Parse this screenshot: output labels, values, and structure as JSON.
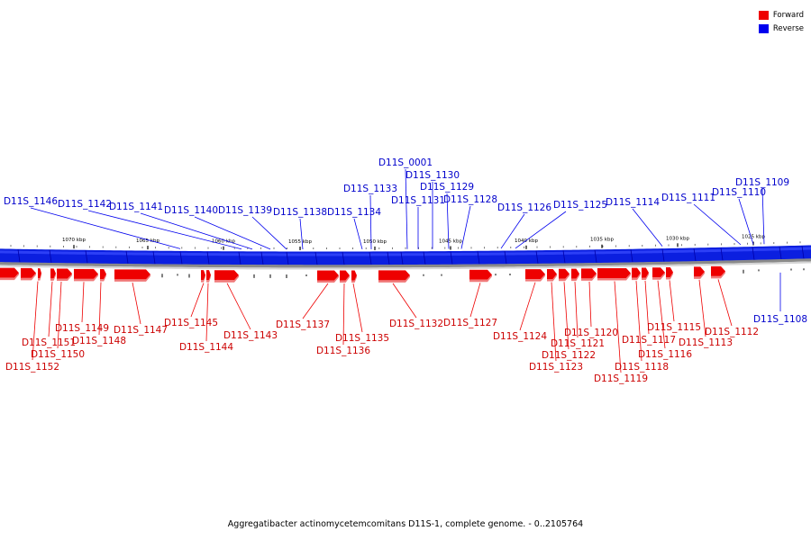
{
  "legend": [
    {
      "label": "Forward",
      "color": "#ee0000"
    },
    {
      "label": "Reverse",
      "color": "#0000ee"
    }
  ],
  "caption": "Aggregatibacter actinomycetemcomitans D11S-1, complete genome. - 0..2105764",
  "scale_labels": [
    "1070 kbp",
    "1065 kbp",
    "1060 kbp",
    "1055 kbp",
    "1050 kbp",
    "1045 kbp",
    "1040 kbp",
    "1035 kbp",
    "1030 kbp",
    "1025 kbp"
  ],
  "reverse_labels": [
    "D11S_1146",
    "D11S_1142",
    "D11S_1141",
    "D11S_1140",
    "D11S_1139",
    "D11S_1138",
    "D11S_1134",
    "D11S_1133",
    "D11S_0001",
    "D11S_1131",
    "D11S_1130",
    "D11S_1129",
    "D11S_1128",
    "D11S_1126",
    "D11S_1125",
    "D11S_1114",
    "D11S_1111",
    "D11S_1110",
    "D11S_1109",
    "D11S_1108"
  ],
  "forward_labels": [
    "D11S_1152",
    "D11S_1151",
    "D11S_1150",
    "D11S_1149",
    "D11S_1148",
    "D11S_1147",
    "D11S_1145",
    "D11S_1144",
    "D11S_1143",
    "D11S_1137",
    "D11S_1136",
    "D11S_1135",
    "D11S_1132",
    "D11S_1127",
    "D11S_1124",
    "D11S_1123",
    "D11S_1122",
    "D11S_1121",
    "D11S_1120",
    "D11S_1119",
    "D11S_1118",
    "D11S_1117",
    "D11S_1116",
    "D11S_1115",
    "D11S_1113",
    "D11S_1112"
  ]
}
